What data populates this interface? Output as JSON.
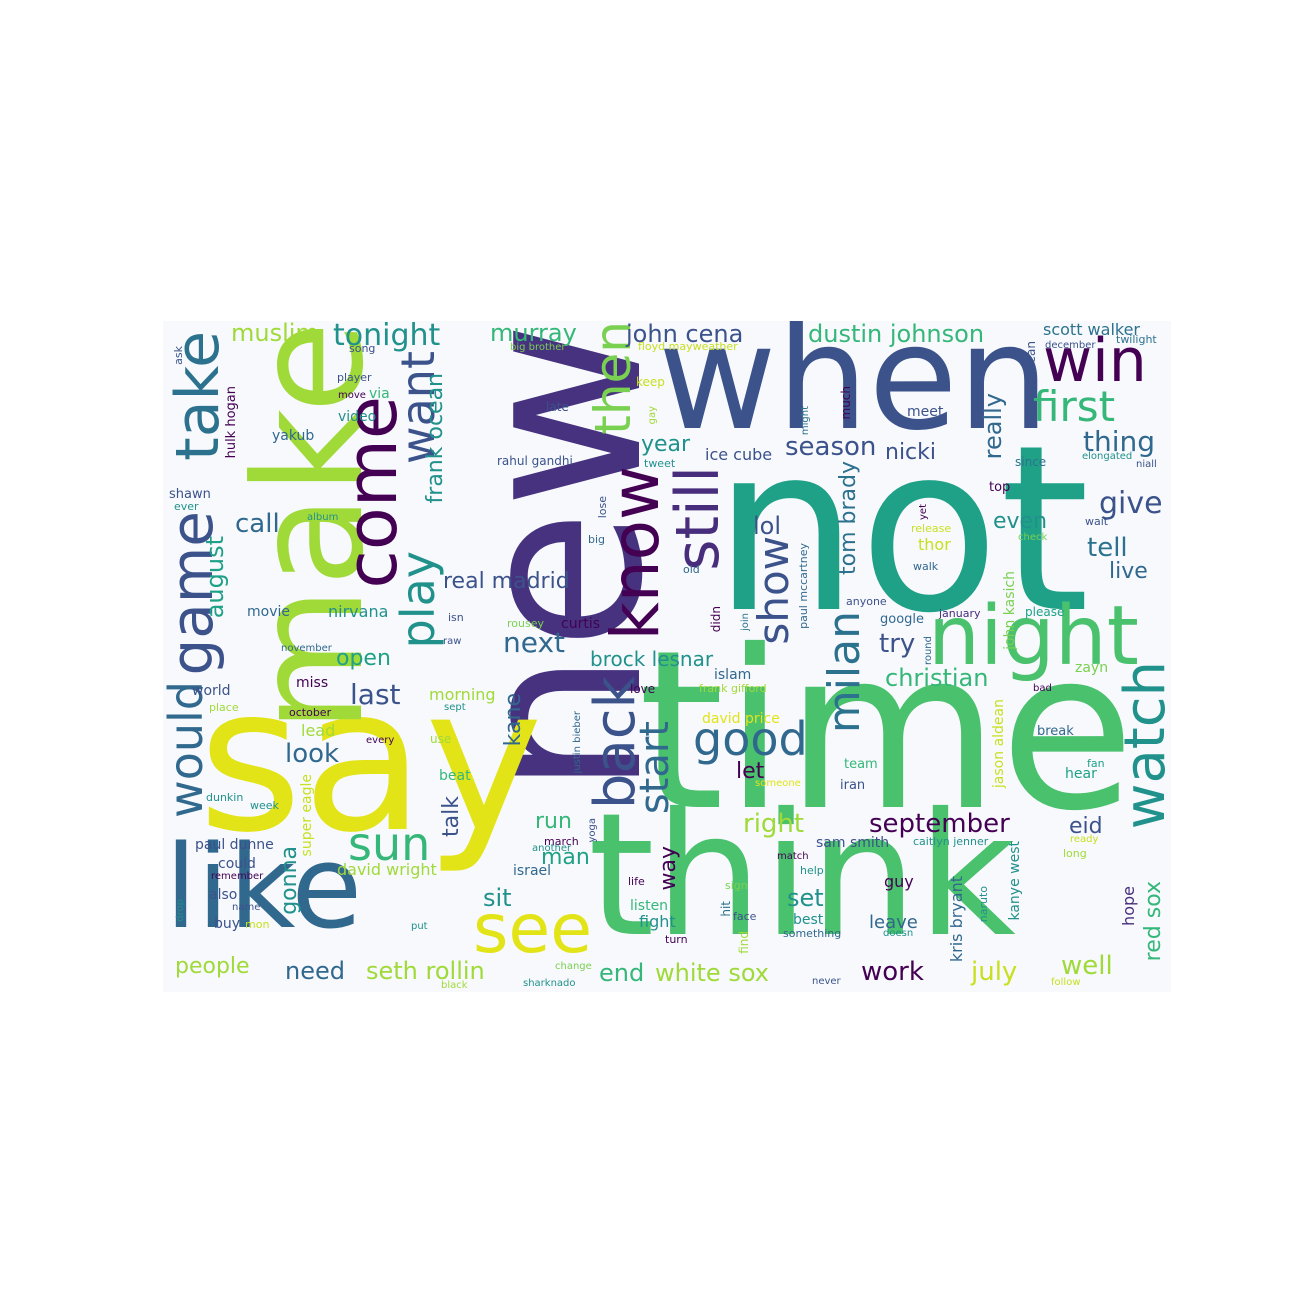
{
  "colors": {
    "background": "#ffffff",
    "canvas": "#f7f9fc",
    "palette": [
      "#440154",
      "#46327e",
      "#365c8d",
      "#277f8e",
      "#1fa187",
      "#4ac16d",
      "#a0da39",
      "#e2e418"
    ]
  },
  "words": [
    {
      "text": "not",
      "color": "#1fa187"
    },
    {
      "text": "time",
      "color": "#4ac16d"
    },
    {
      "text": "new",
      "color": "#46327e"
    },
    {
      "text": "say",
      "color": "#e2e418"
    },
    {
      "text": "think",
      "color": "#4ac16d"
    },
    {
      "text": "make",
      "color": "#a0da39"
    },
    {
      "text": "when",
      "color": "#3b528b"
    },
    {
      "text": "like",
      "color": "#31688e"
    },
    {
      "text": "come",
      "color": "#440154"
    },
    {
      "text": "night",
      "color": "#4ac16d"
    },
    {
      "text": "know",
      "color": "#440154"
    },
    {
      "text": "take",
      "color": "#2c728e"
    },
    {
      "text": "see",
      "color": "#e2e418"
    },
    {
      "text": "game",
      "color": "#3b528b"
    },
    {
      "text": "would",
      "color": "#31688e"
    },
    {
      "text": "still",
      "color": "#472d7b"
    },
    {
      "text": "back",
      "color": "#3b528b"
    },
    {
      "text": "watch",
      "color": "#21918c"
    },
    {
      "text": "play",
      "color": "#21918c"
    },
    {
      "text": "want",
      "color": "#3b528b"
    },
    {
      "text": "win",
      "color": "#440154"
    },
    {
      "text": "then",
      "color": "#7ad151"
    },
    {
      "text": "sun",
      "color": "#35b779"
    },
    {
      "text": "show",
      "color": "#3b528b"
    },
    {
      "text": "good",
      "color": "#31688e"
    },
    {
      "text": "milan",
      "color": "#2c728e"
    },
    {
      "text": "first",
      "color": "#35b779"
    },
    {
      "text": "start",
      "color": "#31688e"
    },
    {
      "text": "tonight",
      "color": "#21918c"
    },
    {
      "text": "muslim",
      "color": "#a0da39"
    },
    {
      "text": "murray",
      "color": "#35b779"
    },
    {
      "text": "john cena",
      "color": "#3b528b"
    },
    {
      "text": "dustin johnson",
      "color": "#35b779"
    },
    {
      "text": "scott walker",
      "color": "#2c728e"
    },
    {
      "text": "twilight",
      "color": "#2c728e"
    },
    {
      "text": "thing",
      "color": "#31688e"
    },
    {
      "text": "season",
      "color": "#3b528b"
    },
    {
      "text": "nicki",
      "color": "#3b528b"
    },
    {
      "text": "year",
      "color": "#21918c"
    },
    {
      "text": "ice cube",
      "color": "#3b528b"
    },
    {
      "text": "frank ocean",
      "color": "#21918c"
    },
    {
      "text": "real madrid",
      "color": "#3b528b"
    },
    {
      "text": "next",
      "color": "#31688e"
    },
    {
      "text": "brock lesnar",
      "color": "#21918c"
    },
    {
      "text": "open",
      "color": "#1fa187"
    },
    {
      "text": "last",
      "color": "#3b528b"
    },
    {
      "text": "look",
      "color": "#31688e"
    },
    {
      "text": "right",
      "color": "#a0da39"
    },
    {
      "text": "september",
      "color": "#440154"
    },
    {
      "text": "let",
      "color": "#440154"
    },
    {
      "text": "lol",
      "color": "#3b528b"
    },
    {
      "text": "try",
      "color": "#3b528b"
    },
    {
      "text": "christian",
      "color": "#35b779"
    },
    {
      "text": "tom brady",
      "color": "#2c728e"
    },
    {
      "text": "really",
      "color": "#31688e"
    },
    {
      "text": "give",
      "color": "#3b528b"
    },
    {
      "text": "tell",
      "color": "#2c728e"
    },
    {
      "text": "live",
      "color": "#31688e"
    },
    {
      "text": "even",
      "color": "#21918c"
    },
    {
      "text": "call",
      "color": "#31688e"
    },
    {
      "text": "august",
      "color": "#1fa187"
    },
    {
      "text": "kane",
      "color": "#31688e"
    },
    {
      "text": "run",
      "color": "#35b779"
    },
    {
      "text": "talk",
      "color": "#3b528b"
    },
    {
      "text": "sit",
      "color": "#21918c"
    },
    {
      "text": "man",
      "color": "#1fa187"
    },
    {
      "text": "way",
      "color": "#440154"
    },
    {
      "text": "gonna",
      "color": "#21918c"
    },
    {
      "text": "need",
      "color": "#31688e"
    },
    {
      "text": "seth rollin",
      "color": "#a0da39"
    },
    {
      "text": "end",
      "color": "#35b779"
    },
    {
      "text": "white sox",
      "color": "#a0da39"
    },
    {
      "text": "work",
      "color": "#440154"
    },
    {
      "text": "july",
      "color": "#c8e020"
    },
    {
      "text": "well",
      "color": "#a0da39"
    },
    {
      "text": "red sox",
      "color": "#35b779"
    },
    {
      "text": "eid",
      "color": "#3b528b"
    },
    {
      "text": "people",
      "color": "#a0da39"
    },
    {
      "text": "david wright",
      "color": "#a0da39"
    },
    {
      "text": "paul dunne",
      "color": "#3b528b"
    },
    {
      "text": "could",
      "color": "#3b528b"
    },
    {
      "text": "kanye west",
      "color": "#21918c"
    },
    {
      "text": "kris bryant",
      "color": "#31688e"
    },
    {
      "text": "set",
      "color": "#21918c"
    },
    {
      "text": "guy",
      "color": "#440154"
    },
    {
      "text": "leave",
      "color": "#31688e"
    },
    {
      "text": "hope",
      "color": "#472d7b"
    },
    {
      "text": "nirvana",
      "color": "#21918c"
    },
    {
      "text": "movie",
      "color": "#31688e"
    },
    {
      "text": "miss",
      "color": "#440154"
    },
    {
      "text": "lead",
      "color": "#a0da39"
    },
    {
      "text": "morning",
      "color": "#a0da39"
    },
    {
      "text": "curtis",
      "color": "#440154"
    },
    {
      "text": "rousey",
      "color": "#7ad151"
    },
    {
      "text": "israel",
      "color": "#31688e"
    },
    {
      "text": "listen",
      "color": "#35b779"
    },
    {
      "text": "fight",
      "color": "#21918c"
    },
    {
      "text": "best",
      "color": "#21918c"
    },
    {
      "text": "something",
      "color": "#31688e"
    },
    {
      "text": "islam",
      "color": "#31688e"
    },
    {
      "text": "love",
      "color": "#440154"
    },
    {
      "text": "david price",
      "color": "#e2e418"
    },
    {
      "text": "team",
      "color": "#35b779"
    },
    {
      "text": "iran",
      "color": "#3b528b"
    },
    {
      "text": "sam smith",
      "color": "#3b528b"
    },
    {
      "text": "caitlyn jenner",
      "color": "#21918c"
    },
    {
      "text": "jason aldean",
      "color": "#c8e020"
    },
    {
      "text": "john kasich",
      "color": "#7ad151"
    },
    {
      "text": "google",
      "color": "#31688e"
    },
    {
      "text": "january",
      "color": "#472d7b"
    },
    {
      "text": "please",
      "color": "#1fa187"
    },
    {
      "text": "zayn",
      "color": "#7ad151"
    },
    {
      "text": "break",
      "color": "#31688e"
    },
    {
      "text": "hear",
      "color": "#1fa187"
    },
    {
      "text": "fan",
      "color": "#1fa187"
    },
    {
      "text": "wait",
      "color": "#3b528b"
    },
    {
      "text": "check",
      "color": "#7ad151"
    },
    {
      "text": "thor",
      "color": "#c8e020"
    },
    {
      "text": "walk",
      "color": "#31688e"
    },
    {
      "text": "anyone",
      "color": "#3b528b"
    },
    {
      "text": "meet",
      "color": "#3b528b"
    },
    {
      "text": "since",
      "color": "#2c728e"
    },
    {
      "text": "top",
      "color": "#440154"
    },
    {
      "text": "elongated",
      "color": "#21918c"
    },
    {
      "text": "niall",
      "color": "#3b528b"
    },
    {
      "text": "december",
      "color": "#3b528b"
    },
    {
      "text": "mean",
      "color": "#3b528b"
    },
    {
      "text": "yakub",
      "color": "#31688e"
    },
    {
      "text": "video",
      "color": "#21918c"
    },
    {
      "text": "via",
      "color": "#35b779"
    },
    {
      "text": "hulk hogan",
      "color": "#440154"
    },
    {
      "text": "shawn",
      "color": "#3b528b"
    },
    {
      "text": "ever",
      "color": "#21918c"
    },
    {
      "text": "song",
      "color": "#3b528b"
    },
    {
      "text": "player",
      "color": "#3b528b"
    },
    {
      "text": "move",
      "color": "#440154"
    },
    {
      "text": "ask",
      "color": "#3b528b"
    },
    {
      "text": "late",
      "color": "#3b528b"
    },
    {
      "text": "rahul gandhi",
      "color": "#3b528b"
    },
    {
      "text": "tweet",
      "color": "#21918c"
    },
    {
      "text": "old",
      "color": "#31688e"
    },
    {
      "text": "big",
      "color": "#31688e"
    },
    {
      "text": "lose",
      "color": "#3b528b"
    },
    {
      "text": "album",
      "color": "#21918c"
    },
    {
      "text": "keep",
      "color": "#c8e020"
    },
    {
      "text": "gay",
      "color": "#a0da39"
    },
    {
      "text": "might",
      "color": "#2c728e"
    },
    {
      "text": "much",
      "color": "#440154"
    },
    {
      "text": "yet",
      "color": "#440154"
    },
    {
      "text": "release",
      "color": "#c8e020"
    },
    {
      "text": "big brother",
      "color": "#7ad151"
    },
    {
      "text": "floyd mayweather",
      "color": "#c8e020"
    },
    {
      "text": "isn",
      "color": "#3b528b"
    },
    {
      "text": "raw",
      "color": "#3b528b"
    },
    {
      "text": "didn",
      "color": "#440154"
    },
    {
      "text": "join",
      "color": "#2c728e"
    },
    {
      "text": "paul mccartney",
      "color": "#31688e"
    },
    {
      "text": "november",
      "color": "#31688e"
    },
    {
      "text": "world",
      "color": "#3b528b"
    },
    {
      "text": "place",
      "color": "#a0da39"
    },
    {
      "text": "october",
      "color": "#440154"
    },
    {
      "text": "sept",
      "color": "#21918c"
    },
    {
      "text": "every",
      "color": "#440154"
    },
    {
      "text": "use",
      "color": "#a0da39"
    },
    {
      "text": "beat",
      "color": "#35b779"
    },
    {
      "text": "dunkin",
      "color": "#21918c"
    },
    {
      "text": "week",
      "color": "#21918c"
    },
    {
      "text": "super eagle",
      "color": "#c8e020"
    },
    {
      "text": "remember",
      "color": "#440154"
    },
    {
      "text": "also",
      "color": "#3b528b"
    },
    {
      "text": "name",
      "color": "#3b528b"
    },
    {
      "text": "drop",
      "color": "#21918c"
    },
    {
      "text": "buy",
      "color": "#3b528b"
    },
    {
      "text": "mon",
      "color": "#c8e020"
    },
    {
      "text": "put",
      "color": "#21918c"
    },
    {
      "text": "change",
      "color": "#7ad151"
    },
    {
      "text": "black",
      "color": "#a0da39"
    },
    {
      "text": "sharknado",
      "color": "#21918c"
    },
    {
      "text": "justin bieber",
      "color": "#31688e"
    },
    {
      "text": "yoga",
      "color": "#3b528b"
    },
    {
      "text": "march",
      "color": "#440154"
    },
    {
      "text": "another",
      "color": "#21918c"
    },
    {
      "text": "life",
      "color": "#440154"
    },
    {
      "text": "sign",
      "color": "#7ad151"
    },
    {
      "text": "hit",
      "color": "#2c728e"
    },
    {
      "text": "face",
      "color": "#3b528b"
    },
    {
      "text": "find",
      "color": "#a0da39"
    },
    {
      "text": "turn",
      "color": "#440154"
    },
    {
      "text": "match",
      "color": "#440154"
    },
    {
      "text": "help",
      "color": "#21918c"
    },
    {
      "text": "never",
      "color": "#3b528b"
    },
    {
      "text": "someone",
      "color": "#e2e418"
    },
    {
      "text": "frank gifford",
      "color": "#a0da39"
    },
    {
      "text": "naruto",
      "color": "#21918c"
    },
    {
      "text": "round",
      "color": "#31688e"
    },
    {
      "text": "bad",
      "color": "#440154"
    },
    {
      "text": "ready",
      "color": "#c8e020"
    },
    {
      "text": "long",
      "color": "#a0da39"
    },
    {
      "text": "follow",
      "color": "#c8e020"
    },
    {
      "text": "doesn",
      "color": "#21918c"
    }
  ]
}
